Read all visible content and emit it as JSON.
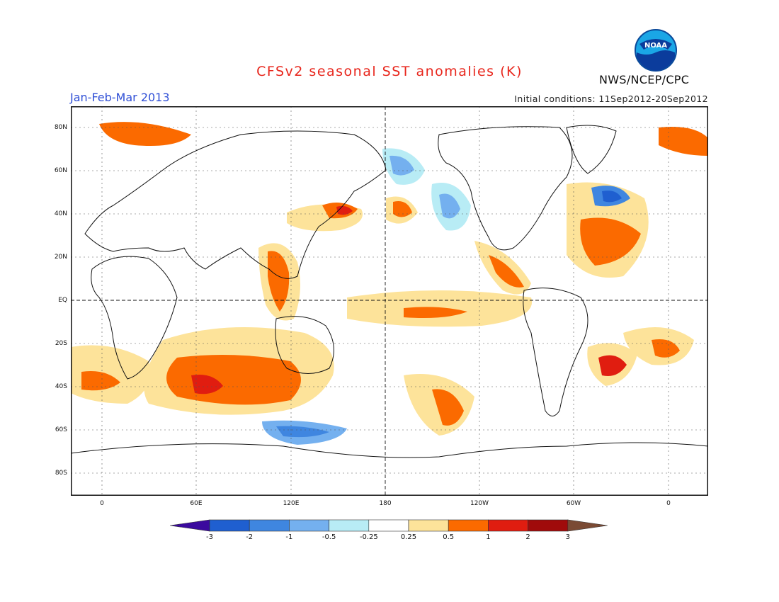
{
  "title": "CFSv2 seasonal SST anomalies (K)",
  "period": "Jan-Feb-Mar 2013",
  "initial_conditions": "Initial conditions: 11Sep2012-20Sep2012",
  "agency": "NWS/NCEP/CPC",
  "logo_text": "NOAA",
  "axes": {
    "lat_labels": [
      "80N",
      "60N",
      "40N",
      "20N",
      "EQ",
      "20S",
      "40S",
      "60S",
      "80S"
    ],
    "lon_labels": [
      "0",
      "60E",
      "120E",
      "180",
      "120W",
      "60W",
      "0"
    ]
  },
  "colorbar": {
    "labels": [
      "-3",
      "-2",
      "-1",
      "-0.5",
      "-0.25",
      "0.25",
      "0.5",
      "1",
      "2",
      "3"
    ],
    "colors": [
      "#3b0a9e",
      "#1f5fd0",
      "#3f86e0",
      "#74b0ef",
      "#b8ecf5",
      "#ffffff",
      "#fde39a",
      "#fb6a00",
      "#e01d10",
      "#a00b0b",
      "#7a4a34"
    ]
  }
}
